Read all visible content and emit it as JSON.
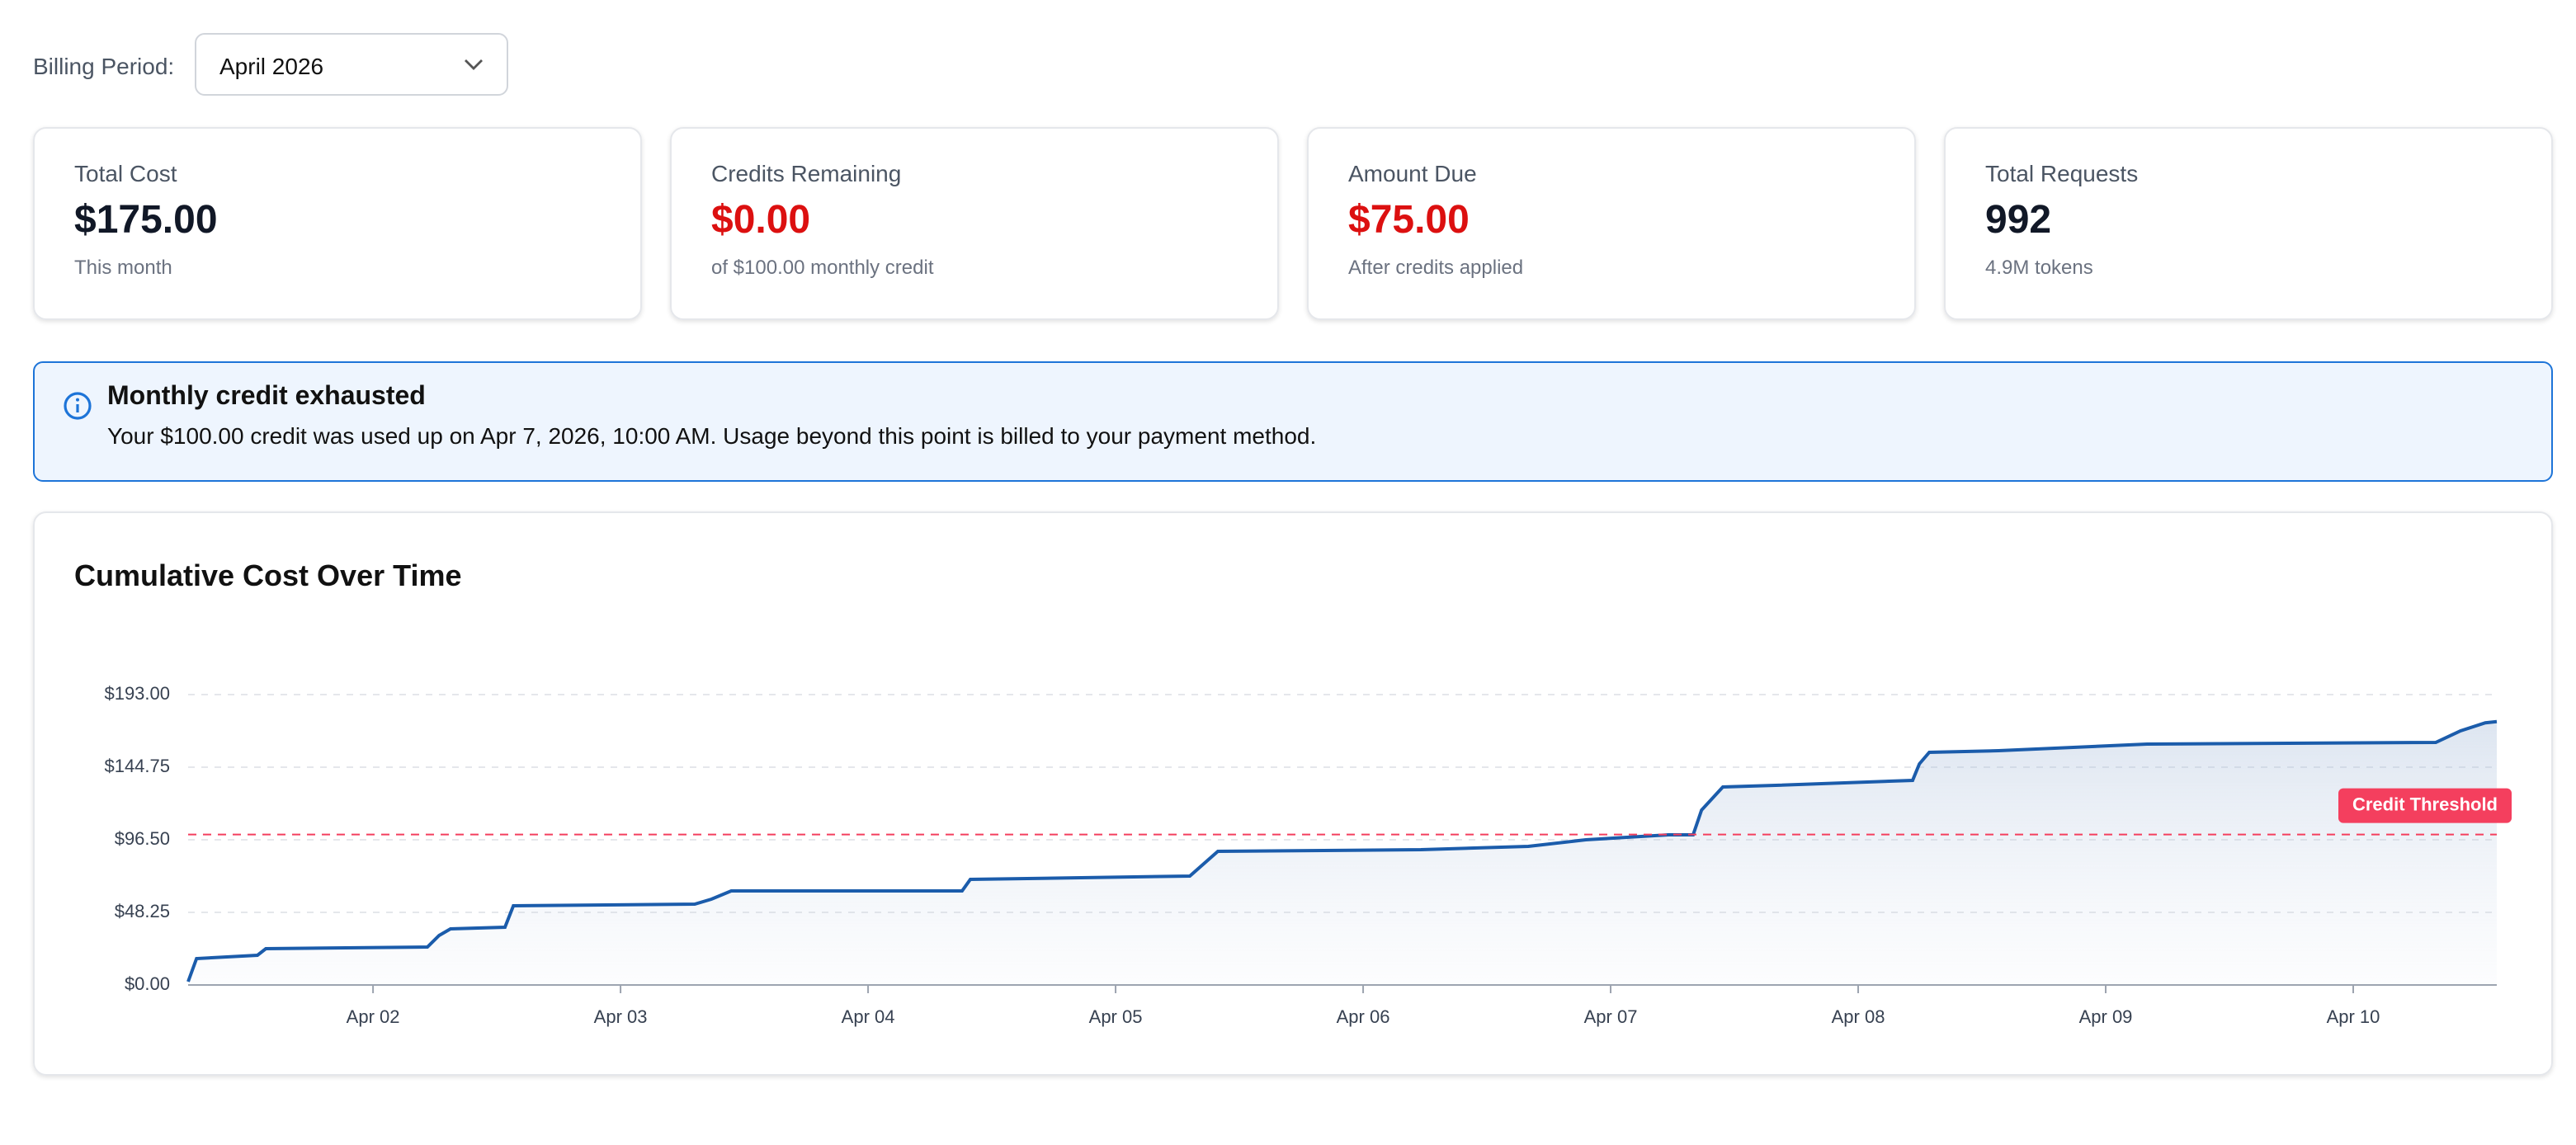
{
  "billing_period": {
    "label": "Billing Period:",
    "value": "April 2026"
  },
  "cards": [
    {
      "label": "Total Cost",
      "value": "$175.00",
      "note": "This month"
    },
    {
      "label": "Credits Remaining",
      "value": "$0.00",
      "note": "of $100.00 monthly credit"
    },
    {
      "label": "Amount Due",
      "value": "$75.00",
      "note": "After credits applied"
    },
    {
      "label": "Total Requests",
      "value": "992",
      "note": "4.9M tokens"
    }
  ],
  "alert": {
    "title": "Monthly credit exhausted",
    "text": "Your $100.00 credit was used up on Apr 7, 2026, 10:00 AM. Usage beyond this point is billed to your payment method."
  },
  "chart_data": {
    "type": "line",
    "title": "Cumulative Cost Over Time",
    "x": [
      1.253,
      1.287,
      1.533,
      1.567,
      2.22,
      2.267,
      2.313,
      2.533,
      2.567,
      3.3,
      3.367,
      3.447,
      4.38,
      4.413,
      5.3,
      5.413,
      6.233,
      6.667,
      6.9,
      7.233,
      7.333,
      7.367,
      7.453,
      7.667,
      8.22,
      8.247,
      8.287,
      8.567,
      9.167,
      10.333,
      10.433,
      10.533,
      10.58
    ],
    "values": [
      2.2,
      17.5,
      19.7,
      24.1,
      25.2,
      32.9,
      37.3,
      38.4,
      52.6,
      53.7,
      57.0,
      62.5,
      62.5,
      70.2,
      72.4,
      88.8,
      89.9,
      92.1,
      96.5,
      99.8,
      99.8,
      116.2,
      131.6,
      132.7,
      136.0,
      146.9,
      154.6,
      155.7,
      160.1,
      161.2,
      168.9,
      174.3,
      175.0
    ],
    "color": "#1b5cab",
    "xlim": [
      1.253,
      10.58
    ],
    "xticks": [
      {
        "value": 2,
        "label": "Apr 02"
      },
      {
        "value": 3,
        "label": "Apr 03"
      },
      {
        "value": 4,
        "label": "Apr 04"
      },
      {
        "value": 5,
        "label": "Apr 05"
      },
      {
        "value": 6,
        "label": "Apr 06"
      },
      {
        "value": 7,
        "label": "Apr 07"
      },
      {
        "value": 8,
        "label": "Apr 08"
      },
      {
        "value": 9,
        "label": "Apr 09"
      },
      {
        "value": 10,
        "label": "Apr 10"
      }
    ],
    "ylim": [
      0,
      193
    ],
    "yticks": [
      {
        "value": 0,
        "label": "$0.00"
      },
      {
        "value": 48.25,
        "label": "$48.25"
      },
      {
        "value": 96.5,
        "label": "$96.50"
      },
      {
        "value": 144.75,
        "label": "$144.75"
      },
      {
        "value": 193,
        "label": "$193.00"
      }
    ],
    "grid": true,
    "threshold": {
      "value": 100,
      "label": "Credit Threshold",
      "color": "#f43f5e"
    }
  }
}
